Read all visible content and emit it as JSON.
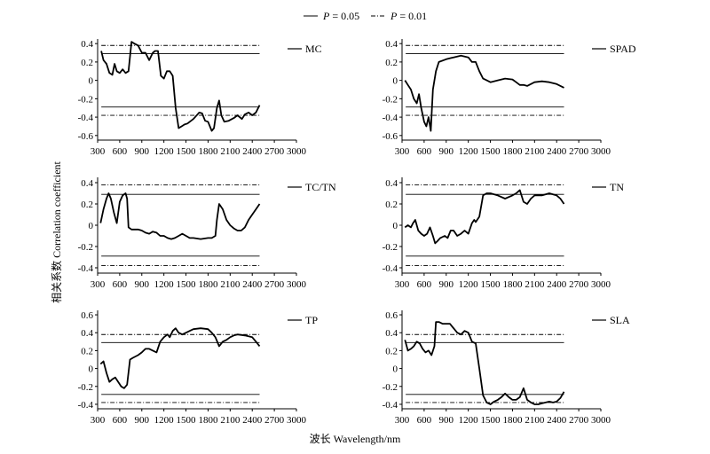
{
  "figure": {
    "legend": [
      {
        "label_p": "P",
        "label_rest": " = 0.05",
        "style": "solid"
      },
      {
        "label_p": "P",
        "label_rest": " = 0.01",
        "style": "dashdot"
      }
    ],
    "xlabel": "波长 Wavelength/nm",
    "ylabel": "相关系数 Correlation coefficient"
  },
  "chart_data": [
    {
      "type": "line",
      "label": "MC",
      "xlim": [
        300,
        3000
      ],
      "ylim": [
        -0.65,
        0.45
      ],
      "xticks": [
        300,
        600,
        900,
        1200,
        1500,
        1800,
        2100,
        2400,
        2700,
        3000
      ],
      "yticks": [
        0.4,
        0.2,
        0,
        -0.2,
        -0.4,
        -0.6
      ],
      "significance": {
        "p005": 0.29,
        "p001": 0.38
      },
      "x": [
        350,
        380,
        420,
        460,
        500,
        530,
        560,
        600,
        640,
        680,
        720,
        760,
        800,
        850,
        900,
        950,
        1000,
        1050,
        1080,
        1120,
        1160,
        1200,
        1240,
        1280,
        1320,
        1360,
        1400,
        1440,
        1480,
        1520,
        1600,
        1680,
        1720,
        1760,
        1800,
        1850,
        1880,
        1920,
        1950,
        1980,
        2020,
        2080,
        2150,
        2200,
        2260,
        2300,
        2350,
        2400,
        2450,
        2500
      ],
      "y": [
        0.32,
        0.22,
        0.18,
        0.08,
        0.06,
        0.18,
        0.1,
        0.08,
        0.12,
        0.08,
        0.1,
        0.42,
        0.4,
        0.38,
        0.3,
        0.3,
        0.22,
        0.3,
        0.32,
        0.32,
        0.05,
        0.02,
        0.1,
        0.1,
        0.05,
        -0.3,
        -0.52,
        -0.5,
        -0.48,
        -0.47,
        -0.42,
        -0.35,
        -0.36,
        -0.44,
        -0.45,
        -0.55,
        -0.52,
        -0.3,
        -0.22,
        -0.38,
        -0.45,
        -0.44,
        -0.41,
        -0.38,
        -0.42,
        -0.37,
        -0.35,
        -0.38,
        -0.35,
        -0.27
      ]
    },
    {
      "type": "line",
      "label": "SPAD",
      "xlim": [
        300,
        3000
      ],
      "ylim": [
        -0.65,
        0.45
      ],
      "xticks": [
        300,
        600,
        900,
        1200,
        1500,
        1800,
        2100,
        2400,
        2700,
        3000
      ],
      "yticks": [
        0.4,
        0.2,
        0,
        -0.2,
        -0.4,
        -0.6
      ],
      "significance": {
        "p005": 0.29,
        "p001": 0.38
      },
      "x": [
        340,
        380,
        420,
        460,
        500,
        530,
        560,
        600,
        630,
        660,
        690,
        720,
        760,
        800,
        900,
        1000,
        1100,
        1200,
        1250,
        1300,
        1350,
        1400,
        1450,
        1500,
        1600,
        1700,
        1800,
        1850,
        1900,
        1950,
        2000,
        2100,
        2200,
        2300,
        2400,
        2500
      ],
      "y": [
        0.0,
        -0.05,
        -0.1,
        -0.2,
        -0.25,
        -0.15,
        -0.3,
        -0.45,
        -0.5,
        -0.4,
        -0.55,
        -0.1,
        0.1,
        0.2,
        0.23,
        0.25,
        0.27,
        0.25,
        0.2,
        0.2,
        0.1,
        0.02,
        0.0,
        -0.02,
        0.0,
        0.02,
        0.01,
        -0.02,
        -0.05,
        -0.05,
        -0.06,
        -0.02,
        -0.01,
        -0.02,
        -0.04,
        -0.08
      ]
    },
    {
      "type": "line",
      "label": "TC/TN",
      "xlim": [
        300,
        3000
      ],
      "ylim": [
        -0.45,
        0.45
      ],
      "xticks": [
        300,
        600,
        900,
        1200,
        1500,
        1800,
        2100,
        2400,
        2700,
        3000
      ],
      "yticks": [
        0.4,
        0.2,
        0,
        -0.2,
        -0.4
      ],
      "significance": {
        "p005": 0.29,
        "p001": 0.38
      },
      "x": [
        340,
        380,
        420,
        450,
        480,
        520,
        560,
        600,
        640,
        680,
        700,
        720,
        760,
        800,
        850,
        900,
        950,
        1000,
        1050,
        1100,
        1150,
        1200,
        1250,
        1300,
        1350,
        1400,
        1450,
        1500,
        1550,
        1600,
        1700,
        1800,
        1850,
        1900,
        1920,
        1950,
        2000,
        2050,
        2100,
        2150,
        2200,
        2250,
        2300,
        2350,
        2400,
        2450,
        2500
      ],
      "y": [
        0.02,
        0.15,
        0.25,
        0.3,
        0.25,
        0.12,
        0.02,
        0.22,
        0.28,
        0.3,
        0.25,
        -0.02,
        -0.04,
        -0.04,
        -0.04,
        -0.05,
        -0.07,
        -0.08,
        -0.06,
        -0.07,
        -0.1,
        -0.1,
        -0.12,
        -0.13,
        -0.12,
        -0.1,
        -0.08,
        -0.1,
        -0.12,
        -0.12,
        -0.13,
        -0.12,
        -0.12,
        -0.1,
        0.05,
        0.2,
        0.15,
        0.05,
        0.0,
        -0.03,
        -0.05,
        -0.05,
        -0.02,
        0.05,
        0.1,
        0.15,
        0.2
      ]
    },
    {
      "type": "line",
      "label": "TN",
      "xlim": [
        300,
        3000
      ],
      "ylim": [
        -0.45,
        0.45
      ],
      "xticks": [
        300,
        600,
        900,
        1200,
        1500,
        1800,
        2100,
        2400,
        2700,
        3000
      ],
      "yticks": [
        0.4,
        0.2,
        0,
        -0.2,
        -0.4
      ],
      "significance": {
        "p005": 0.29,
        "p001": 0.38
      },
      "x": [
        340,
        380,
        420,
        450,
        480,
        520,
        560,
        600,
        640,
        680,
        720,
        750,
        780,
        820,
        880,
        920,
        960,
        1000,
        1050,
        1100,
        1150,
        1200,
        1250,
        1280,
        1300,
        1350,
        1400,
        1450,
        1500,
        1600,
        1700,
        1800,
        1850,
        1900,
        1950,
        2000,
        2050,
        2100,
        2200,
        2300,
        2400,
        2450,
        2500
      ],
      "y": [
        -0.02,
        0.0,
        -0.02,
        0.02,
        0.05,
        -0.05,
        -0.08,
        -0.1,
        -0.08,
        -0.02,
        -0.1,
        -0.17,
        -0.15,
        -0.12,
        -0.1,
        -0.12,
        -0.05,
        -0.05,
        -0.1,
        -0.08,
        -0.05,
        -0.08,
        0.02,
        0.05,
        0.03,
        0.08,
        0.28,
        0.3,
        0.3,
        0.28,
        0.25,
        0.28,
        0.3,
        0.33,
        0.22,
        0.2,
        0.25,
        0.28,
        0.28,
        0.3,
        0.28,
        0.25,
        0.2
      ]
    },
    {
      "type": "line",
      "label": "TP",
      "xlim": [
        300,
        3000
      ],
      "ylim": [
        -0.45,
        0.65
      ],
      "xticks": [
        300,
        600,
        900,
        1200,
        1500,
        1800,
        2100,
        2400,
        2700,
        3000
      ],
      "yticks": [
        0.6,
        0.4,
        0.2,
        0,
        -0.2,
        -0.4
      ],
      "significance": {
        "p005": 0.29,
        "p001": 0.38
      },
      "x": [
        340,
        380,
        420,
        460,
        500,
        540,
        580,
        620,
        660,
        700,
        740,
        780,
        850,
        900,
        950,
        1000,
        1050,
        1100,
        1150,
        1200,
        1250,
        1280,
        1320,
        1360,
        1400,
        1450,
        1500,
        1550,
        1600,
        1700,
        1800,
        1850,
        1900,
        1950,
        2000,
        2050,
        2100,
        2150,
        2200,
        2300,
        2400,
        2450,
        2500
      ],
      "y": [
        0.05,
        0.08,
        -0.05,
        -0.15,
        -0.12,
        -0.1,
        -0.15,
        -0.2,
        -0.22,
        -0.18,
        0.1,
        0.12,
        0.15,
        0.18,
        0.22,
        0.22,
        0.2,
        0.18,
        0.3,
        0.35,
        0.38,
        0.35,
        0.42,
        0.45,
        0.4,
        0.38,
        0.4,
        0.42,
        0.44,
        0.45,
        0.44,
        0.4,
        0.35,
        0.25,
        0.3,
        0.32,
        0.35,
        0.37,
        0.38,
        0.37,
        0.35,
        0.3,
        0.25
      ]
    },
    {
      "type": "line",
      "label": "SLA",
      "xlim": [
        300,
        3000
      ],
      "ylim": [
        -0.45,
        0.65
      ],
      "xticks": [
        300,
        600,
        900,
        1200,
        1500,
        1800,
        2100,
        2400,
        2700,
        3000
      ],
      "yticks": [
        0.6,
        0.4,
        0.2,
        0,
        -0.2,
        -0.4
      ],
      "significance": {
        "p005": 0.29,
        "p001": 0.38
      },
      "x": [
        340,
        380,
        420,
        460,
        500,
        540,
        580,
        620,
        660,
        700,
        740,
        760,
        800,
        850,
        900,
        950,
        1000,
        1050,
        1100,
        1150,
        1200,
        1250,
        1300,
        1350,
        1400,
        1450,
        1500,
        1550,
        1600,
        1650,
        1700,
        1750,
        1800,
        1850,
        1900,
        1950,
        2000,
        2050,
        2100,
        2150,
        2200,
        2250,
        2300,
        2350,
        2400,
        2450,
        2500
      ],
      "y": [
        0.32,
        0.2,
        0.22,
        0.25,
        0.3,
        0.28,
        0.22,
        0.18,
        0.2,
        0.15,
        0.25,
        0.52,
        0.52,
        0.5,
        0.5,
        0.5,
        0.45,
        0.4,
        0.38,
        0.42,
        0.4,
        0.3,
        0.28,
        0.0,
        -0.3,
        -0.38,
        -0.4,
        -0.37,
        -0.35,
        -0.32,
        -0.28,
        -0.32,
        -0.35,
        -0.35,
        -0.32,
        -0.22,
        -0.35,
        -0.38,
        -0.4,
        -0.4,
        -0.39,
        -0.38,
        -0.37,
        -0.38,
        -0.37,
        -0.33,
        -0.26
      ]
    }
  ]
}
